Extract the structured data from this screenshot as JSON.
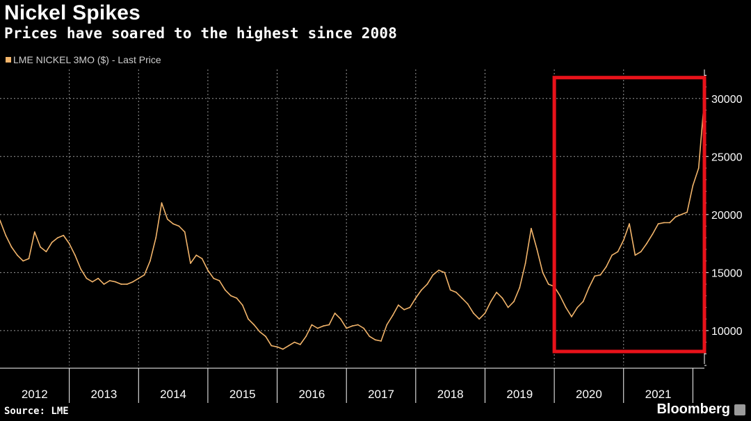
{
  "title": "Nickel Spikes",
  "subtitle": "Prices have soared to the highest since 2008",
  "legend_label": "LME NICKEL 3MO ($) - Last Price",
  "source": "Source: LME",
  "brand": "Bloomberg",
  "colors": {
    "background": "#000000",
    "series": "#f3b56b",
    "highlight_box": "#e8121a",
    "grid": "#9a9a9a"
  },
  "chart_data": {
    "type": "line",
    "title": "Nickel Spikes",
    "subtitle": "Prices have soared to the highest since 2008",
    "xlabel": "",
    "ylabel": "",
    "x_tick_labels": [
      "2012",
      "2013",
      "2014",
      "2015",
      "2016",
      "2017",
      "2018",
      "2019",
      "2020",
      "2021"
    ],
    "y_tick_labels": [
      "10000",
      "15000",
      "20000",
      "25000",
      "30000"
    ],
    "xlim": [
      "2012-01",
      "2022-03"
    ],
    "ylim": [
      7000,
      32500
    ],
    "grid": "dotted",
    "legend_position": "top-left",
    "series": [
      {
        "name": "LME NICKEL 3MO ($) - Last Price",
        "x": [
          "2012-01",
          "2012-02",
          "2012-03",
          "2012-04",
          "2012-05",
          "2012-06",
          "2012-07",
          "2012-08",
          "2012-09",
          "2012-10",
          "2012-11",
          "2012-12",
          "2013-01",
          "2013-02",
          "2013-03",
          "2013-04",
          "2013-05",
          "2013-06",
          "2013-07",
          "2013-08",
          "2013-09",
          "2013-10",
          "2013-11",
          "2013-12",
          "2014-01",
          "2014-02",
          "2014-03",
          "2014-04",
          "2014-05",
          "2014-06",
          "2014-07",
          "2014-08",
          "2014-09",
          "2014-10",
          "2014-11",
          "2014-12",
          "2015-01",
          "2015-02",
          "2015-03",
          "2015-04",
          "2015-05",
          "2015-06",
          "2015-07",
          "2015-08",
          "2015-09",
          "2015-10",
          "2015-11",
          "2015-12",
          "2016-01",
          "2016-02",
          "2016-03",
          "2016-04",
          "2016-05",
          "2016-06",
          "2016-07",
          "2016-08",
          "2016-09",
          "2016-10",
          "2016-11",
          "2016-12",
          "2017-01",
          "2017-02",
          "2017-03",
          "2017-04",
          "2017-05",
          "2017-06",
          "2017-07",
          "2017-08",
          "2017-09",
          "2017-10",
          "2017-11",
          "2017-12",
          "2018-01",
          "2018-02",
          "2018-03",
          "2018-04",
          "2018-05",
          "2018-06",
          "2018-07",
          "2018-08",
          "2018-09",
          "2018-10",
          "2018-11",
          "2018-12",
          "2019-01",
          "2019-02",
          "2019-03",
          "2019-04",
          "2019-05",
          "2019-06",
          "2019-07",
          "2019-08",
          "2019-09",
          "2019-10",
          "2019-11",
          "2019-12",
          "2020-01",
          "2020-02",
          "2020-03",
          "2020-04",
          "2020-05",
          "2020-06",
          "2020-07",
          "2020-08",
          "2020-09",
          "2020-10",
          "2020-11",
          "2020-12",
          "2021-01",
          "2021-02",
          "2021-03",
          "2021-04",
          "2021-05",
          "2021-06",
          "2021-07",
          "2021-08",
          "2021-09",
          "2021-10",
          "2021-11",
          "2021-12",
          "2022-01",
          "2022-02",
          "2022-03"
        ],
        "y": [
          19500,
          18200,
          17200,
          16500,
          16000,
          16200,
          18500,
          17200,
          16800,
          17600,
          18000,
          18200,
          17500,
          16500,
          15300,
          14500,
          14200,
          14500,
          14000,
          14300,
          14200,
          14000,
          14000,
          14200,
          14500,
          14800,
          16000,
          18000,
          21000,
          19600,
          19200,
          19000,
          18500,
          15800,
          16500,
          16200,
          15200,
          14500,
          14300,
          13500,
          13000,
          12800,
          12200,
          11000,
          10500,
          9900,
          9500,
          8700,
          8600,
          8400,
          8700,
          9000,
          8800,
          9500,
          10500,
          10200,
          10400,
          10500,
          11500,
          11000,
          10200,
          10400,
          10500,
          10200,
          9500,
          9200,
          9100,
          10500,
          11300,
          12200,
          11800,
          12000,
          12800,
          13500,
          14000,
          14800,
          15200,
          15000,
          13500,
          13300,
          12800,
          12300,
          11500,
          11000,
          11500,
          12500,
          13300,
          12800,
          12000,
          12500,
          13700,
          15800,
          18800,
          17000,
          15000,
          14000,
          13800,
          13000,
          12000,
          11200,
          12000,
          12500,
          13700,
          14700,
          14800,
          15500,
          16500,
          16800,
          17800,
          19200,
          16500,
          16800,
          17500,
          18300,
          19200,
          19300,
          19300,
          19800,
          20000,
          20200,
          22500,
          24000,
          30000
        ]
      }
    ],
    "annotations": [
      {
        "type": "highlight-box",
        "x_range": [
          "2020-01",
          "2022-03"
        ],
        "y_range": [
          8200,
          31800
        ]
      }
    ]
  }
}
